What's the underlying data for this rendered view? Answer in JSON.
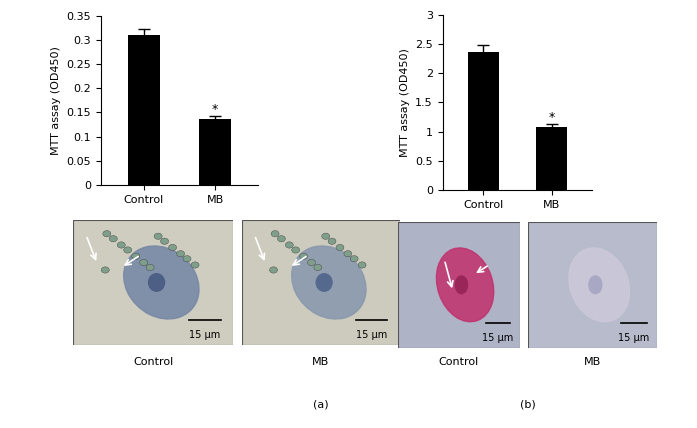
{
  "chart_data": [
    {
      "type": "bar",
      "y_label": "MTT assay (OD450)",
      "categories": [
        "Control",
        "MB"
      ],
      "values": [
        0.31,
        0.137
      ],
      "errors": [
        0.013,
        0.005
      ],
      "color": "#000000",
      "ylim": [
        0,
        0.35
      ],
      "yticks": [
        0,
        0.05,
        0.1,
        0.15,
        0.2,
        0.25,
        0.3,
        0.35
      ],
      "annotations": [
        {
          "category": "MB",
          "text": "*"
        }
      ]
    },
    {
      "type": "bar",
      "y_label": "MTT assay (OD450)",
      "categories": [
        "Control",
        "MB"
      ],
      "values": [
        2.36,
        1.08
      ],
      "errors": [
        0.12,
        0.05
      ],
      "color": "#000000",
      "ylim": [
        0,
        3
      ],
      "yticks": [
        0,
        0.5,
        1,
        1.5,
        2,
        2.5,
        3
      ],
      "annotations": [
        {
          "category": "MB",
          "text": "*"
        }
      ]
    }
  ],
  "panel_labels": [
    "(a)",
    "(b)"
  ],
  "micrographs": [
    {
      "panel": "(a)",
      "caption": "Control",
      "scale_bar": "15 μm"
    },
    {
      "panel": "(a)",
      "caption": "MB",
      "scale_bar": "15 μm"
    },
    {
      "panel": "(b)",
      "caption": "Control",
      "scale_bar": "15 μm"
    },
    {
      "panel": "(b)",
      "caption": "MB",
      "scale_bar": "15 μm"
    }
  ]
}
